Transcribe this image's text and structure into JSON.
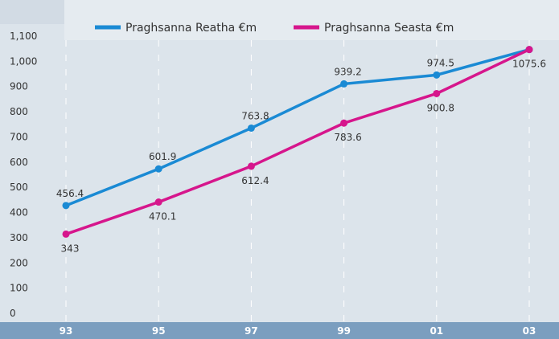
{
  "chart_data": {
    "type": "line",
    "categories": [
      "93",
      "95",
      "97",
      "99",
      "01",
      "03"
    ],
    "series": [
      {
        "name": "Praghsanna Reatha €m",
        "color": "#1a8ad4",
        "values": [
          456.4,
          601.9,
          763.8,
          939.2,
          974.5,
          1075.6
        ]
      },
      {
        "name": "Praghsanna Seasta €m",
        "color": "#d6168c",
        "values": [
          343,
          470.1,
          612.4,
          783.6,
          900.8,
          1075.6
        ]
      }
    ],
    "ylim": [
      0,
      1100
    ],
    "yticks": [
      0,
      100,
      200,
      300,
      400,
      500,
      600,
      700,
      800,
      900,
      {
        "value": 1000,
        "label": "1,000"
      },
      {
        "value": 1100,
        "label": "1,100"
      }
    ]
  }
}
